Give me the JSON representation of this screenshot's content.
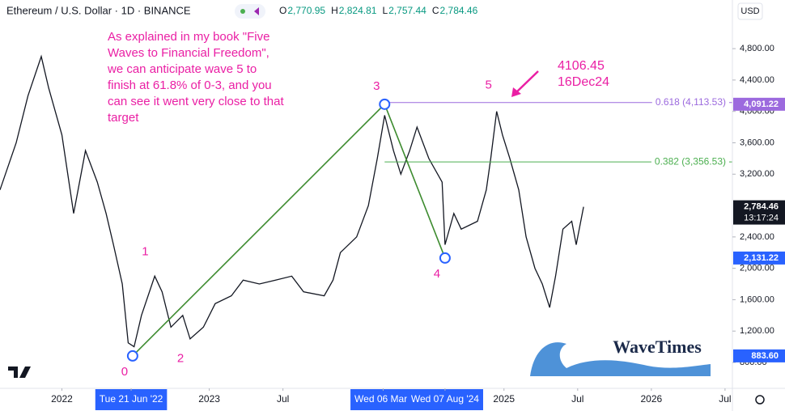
{
  "header": {
    "symbol": "Ethereum / U.S. Dollar · 1D · BINANCE",
    "ohlc": [
      {
        "key": "O",
        "value": "2,770.95"
      },
      {
        "key": "H",
        "value": "2,824.81"
      },
      {
        "key": "L",
        "value": "2,757.44"
      },
      {
        "key": "C",
        "value": "2,784.46"
      }
    ],
    "currency": "USD"
  },
  "chart_data": {
    "type": "line",
    "color": "#131722",
    "x": [
      2021.58,
      2021.69,
      2021.77,
      2021.86,
      2021.91,
      2022.0,
      2022.08,
      2022.16,
      2022.24,
      2022.3,
      2022.35,
      2022.41,
      2022.45,
      2022.49,
      2022.54,
      2022.63,
      2022.68,
      2022.74,
      2022.82,
      2022.87,
      2022.96,
      2023.04,
      2023.15,
      2023.23,
      2023.34,
      2023.45,
      2023.56,
      2023.64,
      2023.78,
      2023.84,
      2023.89,
      2024.0,
      2024.08,
      2024.14,
      2024.19,
      2024.25,
      2024.3,
      2024.36,
      2024.41,
      2024.49,
      2024.58,
      2024.6,
      2024.66,
      2024.71,
      2024.82,
      2024.88,
      2024.91,
      2024.95,
      2024.99,
      2025.04,
      2025.1,
      2025.15,
      2025.21,
      2025.26,
      2025.31,
      2025.35,
      2025.4,
      2025.46,
      2025.49,
      2025.54
    ],
    "values": [
      3000,
      3600,
      4200,
      4700,
      4300,
      3700,
      2700,
      3500,
      3100,
      2700,
      2300,
      1800,
      1050,
      1000,
      1400,
      1900,
      1700,
      1250,
      1400,
      1100,
      1250,
      1550,
      1650,
      1850,
      1800,
      1850,
      1900,
      1700,
      1650,
      1850,
      2200,
      2400,
      2800,
      3400,
      3950,
      3500,
      3200,
      3500,
      3800,
      3400,
      3100,
      2300,
      2700,
      2500,
      2600,
      3000,
      3400,
      4000,
      3700,
      3400,
      3000,
      2400,
      2000,
      1800,
      1500,
      1900,
      2500,
      2600,
      2300,
      2784.46
    ],
    "xlim": [
      2021.58,
      2026.55
    ],
    "ylim": [
      470,
      5420
    ],
    "xticks": [
      {
        "value": 2022,
        "label": "2022"
      },
      {
        "value": 2022.47,
        "label": "Tue 21 Jun '22",
        "highlight": true
      },
      {
        "value": 2023,
        "label": "2023"
      },
      {
        "value": 2023.5,
        "label": "Jul"
      },
      {
        "value": 2024.18,
        "label": "Wed 06 Mar '",
        "highlight": true
      },
      {
        "value": 2024.6,
        "label": "Wed 07 Aug '24",
        "highlight": true
      },
      {
        "value": 2025,
        "label": "2025"
      },
      {
        "value": 2025.5,
        "label": "Jul"
      },
      {
        "value": 2026,
        "label": "2026"
      },
      {
        "value": 2026.5,
        "label": "Jul"
      }
    ],
    "yticks": [
      {
        "value": 4800,
        "label": "4,800.00"
      },
      {
        "value": 4400,
        "label": "4,400.00"
      },
      {
        "value": 4000,
        "label": "4,000.00"
      },
      {
        "value": 3600,
        "label": "3,600.00"
      },
      {
        "value": 3200,
        "label": "3,200.00"
      },
      {
        "value": 2400,
        "label": "2,400.00"
      },
      {
        "value": 2000,
        "label": "2,000.00"
      },
      {
        "value": 1600,
        "label": "1,600.00"
      },
      {
        "value": 1200,
        "label": "1,200.00"
      },
      {
        "value": 800,
        "label": "800.00"
      }
    ],
    "badges": [
      {
        "value": 4091.22,
        "label": "4,091.22",
        "color": "#9c6ade"
      },
      {
        "value": 2784.46,
        "label": "2,784.46",
        "sub": "13:17:24",
        "color": "#131722"
      },
      {
        "value": 2131.22,
        "label": "2,131.22",
        "color": "#2962ff"
      },
      {
        "value": 883.6,
        "label": "883.60",
        "color": "#2962ff"
      }
    ],
    "fib_levels": [
      {
        "value": 4113.53,
        "label": "0.618 (4,113.53)",
        "color": "#9c6ade",
        "from": 2024.19
      },
      {
        "value": 3356.53,
        "label": "0.382 (3,356.53)",
        "color": "#4caf50",
        "from": 2024.19
      }
    ],
    "wave_line": {
      "color": "#3d8b2f",
      "x": [
        2022.48,
        2024.19,
        2024.6
      ],
      "values": [
        883.6,
        4091.22,
        2131.22
      ]
    },
    "wave_labels": [
      {
        "label": "0",
        "x": 2022.48,
        "value": 883.6
      },
      {
        "label": "1",
        "x": 2022.62,
        "value": 1980
      },
      {
        "label": "2",
        "x": 2022.86,
        "value": 1050
      },
      {
        "label": "3",
        "x": 2024.19,
        "value": 4091.22
      },
      {
        "label": "4",
        "x": 2024.6,
        "value": 2131.22
      },
      {
        "label": "5",
        "x": 2024.95,
        "value": 4106.45
      }
    ],
    "annotation": [
      "As explained in my book \"Five",
      "Waves to Financial Freedom\",",
      "we can anticipate wave 5 to",
      "finish at 61.8% of 0-3, and you",
      "can see it went very close to that",
      "target"
    ],
    "peak_note": [
      "4106.45",
      "16Dec24"
    ],
    "logo": "WaveTimes"
  }
}
